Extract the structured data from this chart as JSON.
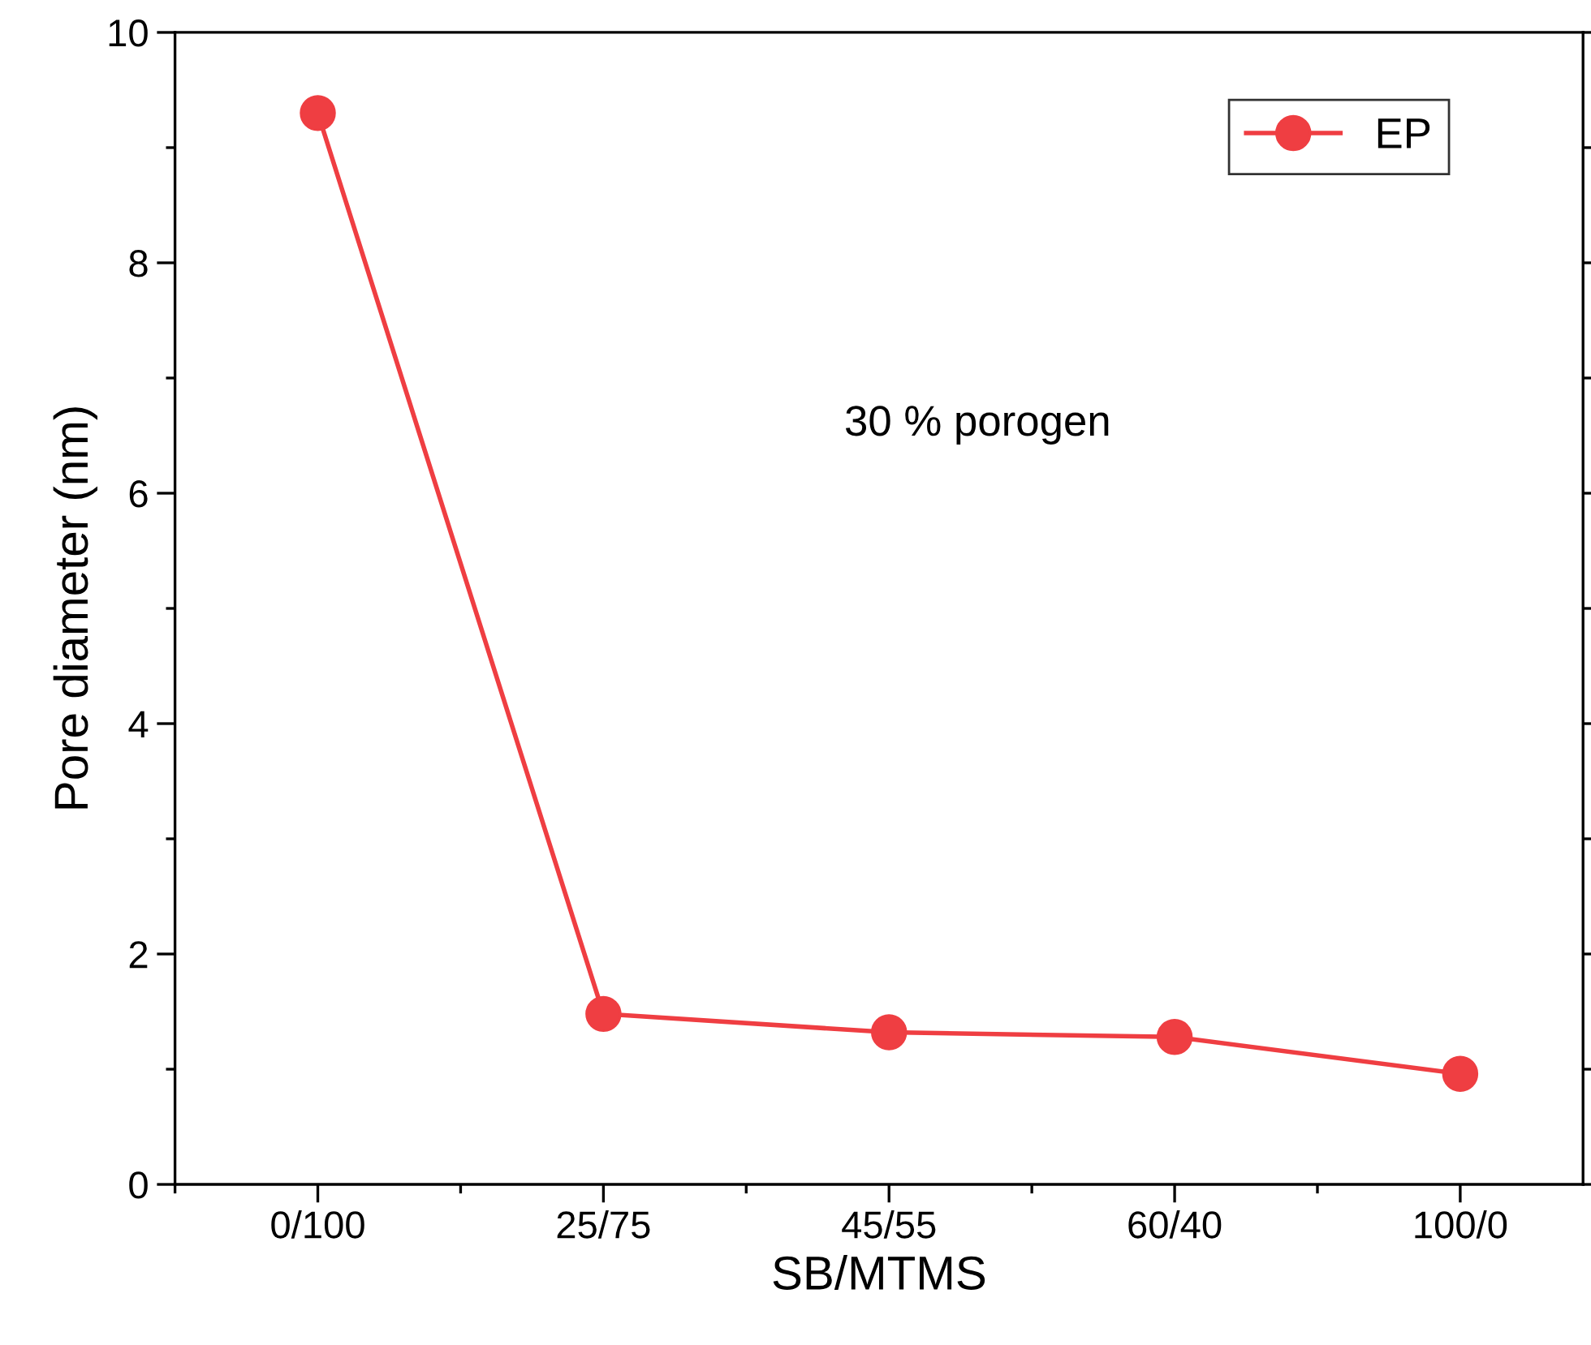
{
  "chart_data": {
    "type": "line",
    "xlabel": "SB/MTMS",
    "ylabel": "Pore diameter (nm)",
    "categories": [
      "0/100",
      "25/75",
      "45/55",
      "60/40",
      "100/0"
    ],
    "series": [
      {
        "name": "EP",
        "color": "#ef3e42",
        "values": [
          9.3,
          1.48,
          1.32,
          1.28,
          0.96
        ]
      }
    ],
    "ylim": [
      0,
      10
    ],
    "yticks": [
      0,
      2,
      4,
      6,
      8,
      10
    ],
    "annotations": [
      "30 % porogen"
    ],
    "marker": "circle",
    "line_style": "solid",
    "legend": "top right",
    "grid": false
  }
}
